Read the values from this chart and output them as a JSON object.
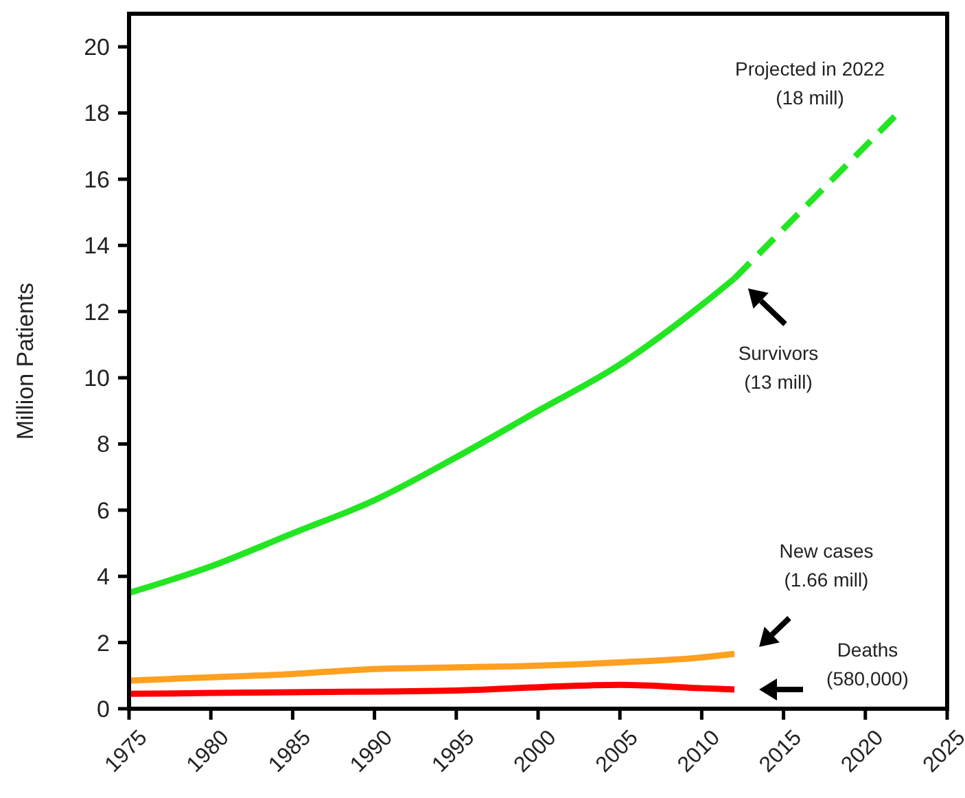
{
  "chart_data": {
    "type": "line",
    "ylabel": "Million Patients",
    "xlim": [
      1975,
      2025
    ],
    "xticks": [
      1975,
      1980,
      1985,
      1990,
      1995,
      2000,
      2005,
      2010,
      2015,
      2020,
      2025
    ],
    "ylim": [
      0,
      21
    ],
    "yticks": [
      0,
      2,
      4,
      6,
      8,
      10,
      12,
      14,
      16,
      18,
      20
    ],
    "series": [
      {
        "color": "#22e622",
        "line_style": "solid",
        "x": [
          1975,
          1980,
          1985,
          1990,
          1995,
          2000,
          2005,
          2010,
          2012
        ],
        "values": [
          3.5,
          4.3,
          5.3,
          6.3,
          7.6,
          9.0,
          10.4,
          12.2,
          13
        ]
      },
      {
        "color": "#22e622",
        "line_style": "dashed",
        "x": [
          2012,
          2022
        ],
        "values": [
          13,
          18
        ]
      },
      {
        "color": "#ffa020",
        "line_style": "solid",
        "x": [
          1975,
          1980,
          1985,
          1990,
          1995,
          2000,
          2005,
          2010,
          2012
        ],
        "values": [
          0.85,
          0.95,
          1.05,
          1.2,
          1.25,
          1.3,
          1.4,
          1.55,
          1.66
        ]
      },
      {
        "color": "#ff0000",
        "line_style": "solid",
        "x": [
          1975,
          1985,
          1995,
          2000,
          2005,
          2010,
          2012
        ],
        "values": [
          0.45,
          0.5,
          0.55,
          0.65,
          0.72,
          0.62,
          0.58
        ]
      }
    ],
    "annotations": [
      "Projected in 2022\n(18 mill)",
      "Survivors\n(13 mill)",
      "New cases\n(1.66 mill)",
      "Deaths\n(580,000)"
    ]
  }
}
